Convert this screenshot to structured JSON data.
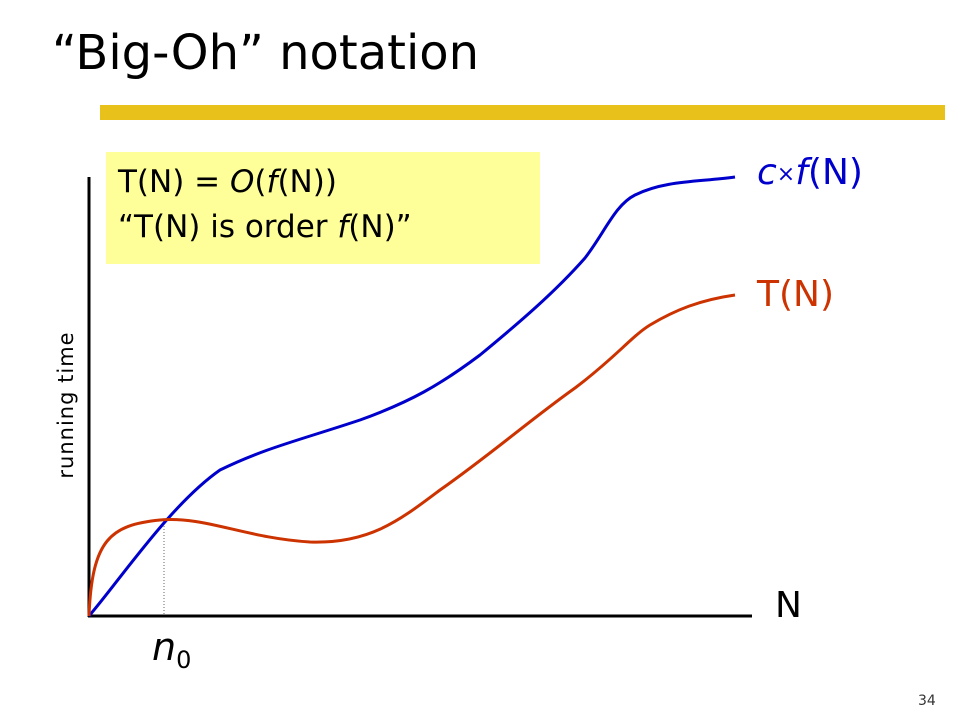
{
  "slide": {
    "title": "“Big-Oh” notation",
    "accent_color": "#E8C21A",
    "page_number": "34"
  },
  "definition": {
    "line1_prefix": "T(N) = ",
    "line1_O": "O",
    "line1_open": "(",
    "line1_f": "f",
    "line1_suffix": "(N))",
    "line2_prefix": "“T(N) is order ",
    "line2_f": "f",
    "line2_suffix": "(N)”",
    "box_color": "#FFFF99"
  },
  "chart_data": {
    "type": "line",
    "xlabel": "N",
    "ylabel": "running time",
    "marker_label": "n",
    "marker_subscript": "0",
    "series": [
      {
        "name": "c×f(N)",
        "name_c": "c",
        "name_times": "×",
        "name_f": "f",
        "name_rest": "(N)",
        "color": "#0000CC"
      },
      {
        "name": "T(N)",
        "color": "#CC3300"
      }
    ]
  }
}
